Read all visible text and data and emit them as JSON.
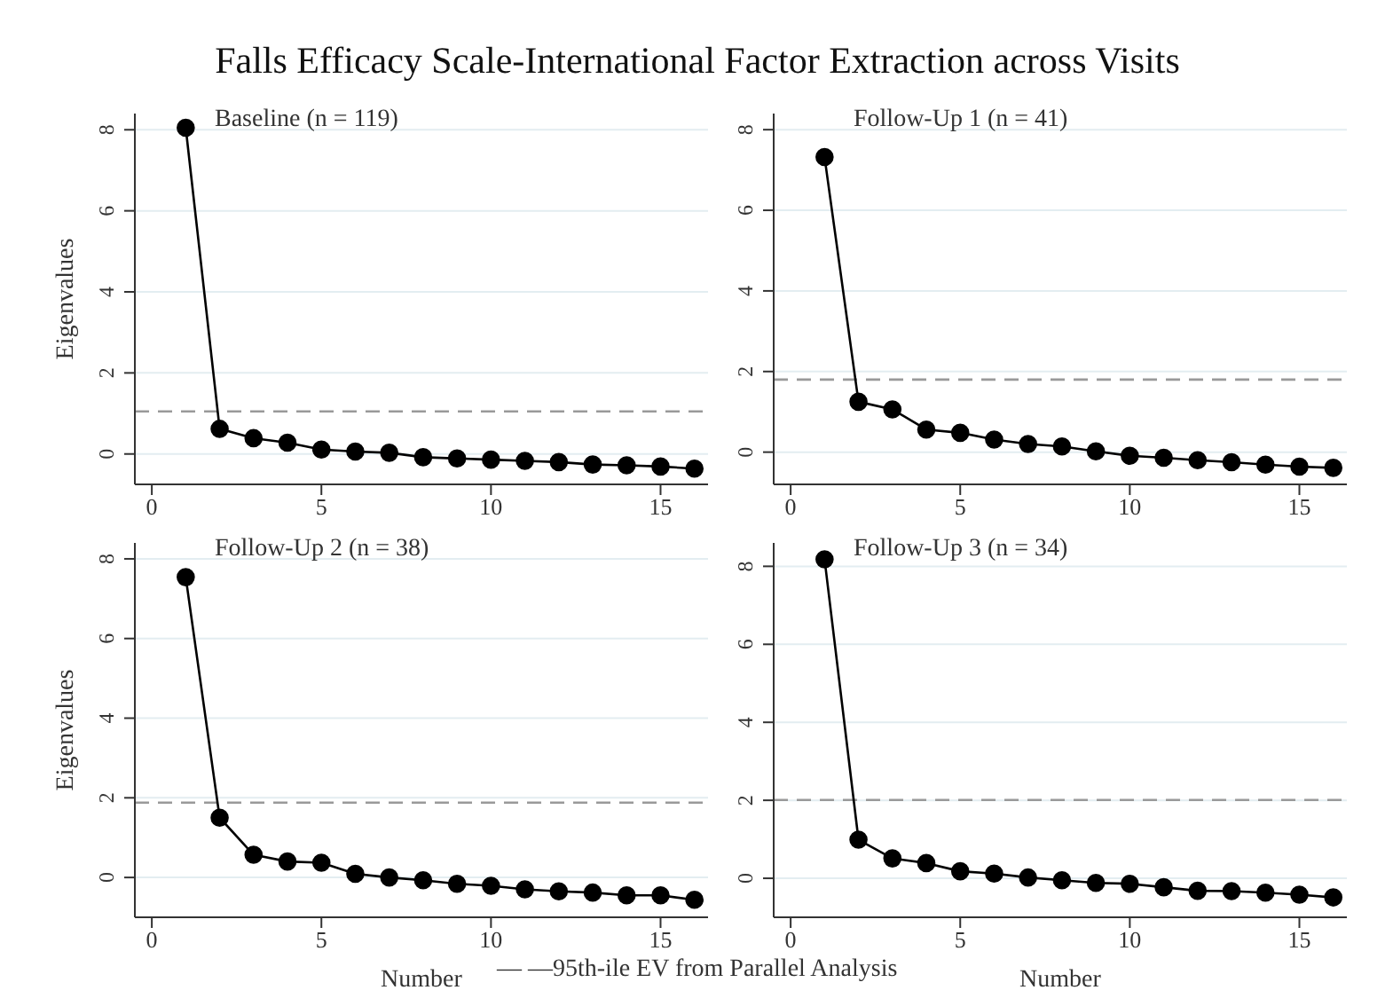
{
  "chart_data": [
    {
      "type": "line",
      "title": "Falls Efficacy Scale-International Factor Extraction across Visits",
      "annotations": [
        "Baseline (n = 119)"
      ],
      "ylabel": "Eigenvalues",
      "x": [
        1,
        2,
        3,
        4,
        5,
        6,
        7,
        8,
        9,
        10,
        11,
        12,
        13,
        14,
        15,
        16
      ],
      "color": "#000000",
      "marker": "circle",
      "line_style": "solid",
      "grid": "y",
      "xlim": [
        -0.5,
        16.4
      ],
      "xticks": [
        0,
        5,
        10,
        15
      ],
      "ylim": [
        -0.75,
        8.4
      ],
      "yticks": [
        0,
        2,
        4,
        6,
        8
      ],
      "values": [
        8.05,
        0.62,
        0.39,
        0.28,
        0.11,
        0.06,
        0.03,
        -0.08,
        -0.11,
        -0.14,
        -0.17,
        -0.2,
        -0.26,
        -0.28,
        -0.31,
        -0.36
      ],
      "ref_lines": [
        {
          "axis": "y",
          "value": 1.05,
          "color": "#999999",
          "line_style": "dashed"
        }
      ]
    },
    {
      "type": "line",
      "annotations": [
        "Follow-Up 1 (n = 41)"
      ],
      "x": [
        1,
        2,
        3,
        4,
        5,
        6,
        7,
        8,
        9,
        10,
        11,
        12,
        13,
        14,
        15,
        16
      ],
      "color": "#000000",
      "marker": "circle",
      "line_style": "solid",
      "grid": "y",
      "xlim": [
        -0.5,
        16.4
      ],
      "xticks": [
        0,
        5,
        10,
        15
      ],
      "ylim": [
        -0.8,
        8.4
      ],
      "yticks": [
        0,
        2,
        4,
        6,
        8
      ],
      "values": [
        7.32,
        1.25,
        1.06,
        0.56,
        0.48,
        0.31,
        0.2,
        0.14,
        0.02,
        -0.09,
        -0.14,
        -0.2,
        -0.25,
        -0.31,
        -0.36,
        -0.39
      ],
      "ref_lines": [
        {
          "axis": "y",
          "value": 1.8,
          "color": "#999999",
          "line_style": "dashed"
        }
      ]
    },
    {
      "type": "line",
      "annotations": [
        "Follow-Up 2 (n = 38)",
        "— —95th-ile EV from Parallel Analysis"
      ],
      "xlabel": "Number",
      "ylabel": "Eigenvalues",
      "x": [
        1,
        2,
        3,
        4,
        5,
        6,
        7,
        8,
        9,
        10,
        11,
        12,
        13,
        14,
        15,
        16
      ],
      "color": "#000000",
      "marker": "circle",
      "line_style": "solid",
      "grid": "y",
      "xlim": [
        -0.5,
        16.4
      ],
      "xticks": [
        0,
        5,
        10,
        15
      ],
      "ylim": [
        -1,
        8.4
      ],
      "yticks": [
        0,
        2,
        4,
        6,
        8
      ],
      "values": [
        7.54,
        1.5,
        0.57,
        0.4,
        0.37,
        0.09,
        0,
        -0.07,
        -0.16,
        -0.21,
        -0.3,
        -0.35,
        -0.38,
        -0.45,
        -0.45,
        -0.56
      ],
      "ref_lines": [
        {
          "axis": "y",
          "value": 1.88,
          "color": "#999999",
          "line_style": "dashed"
        }
      ]
    },
    {
      "type": "line",
      "annotations": [
        "Follow-Up 3 (n = 34)"
      ],
      "xlabel": "Number",
      "x": [
        1,
        2,
        3,
        4,
        5,
        6,
        7,
        8,
        9,
        10,
        11,
        12,
        13,
        14,
        15,
        16
      ],
      "color": "#000000",
      "marker": "circle",
      "line_style": "solid",
      "grid": "y",
      "xlim": [
        -0.5,
        16.4
      ],
      "xticks": [
        0,
        5,
        10,
        15
      ],
      "ylim": [
        -1,
        8.6
      ],
      "yticks": [
        0,
        2,
        4,
        6,
        8
      ],
      "values": [
        8.18,
        0.99,
        0.51,
        0.39,
        0.18,
        0.12,
        0.02,
        -0.05,
        -0.12,
        -0.14,
        -0.23,
        -0.32,
        -0.33,
        -0.37,
        -0.42,
        -0.49
      ],
      "ref_lines": [
        {
          "axis": "y",
          "value": 2.01,
          "color": "#999999",
          "line_style": "dashed"
        }
      ]
    }
  ]
}
